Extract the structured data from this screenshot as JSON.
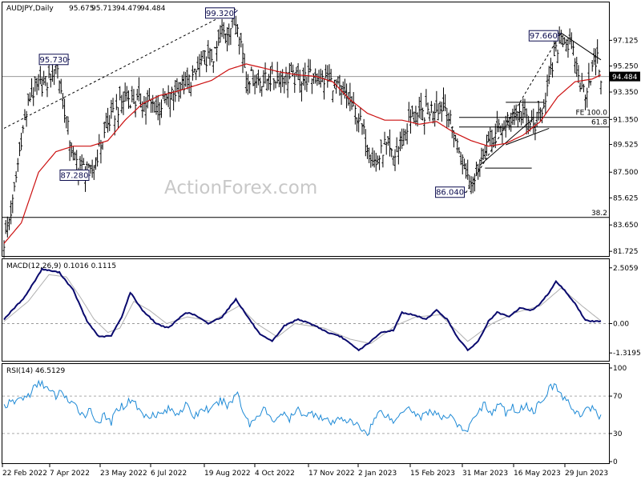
{
  "chart_data": [
    {
      "type": "candlestick",
      "title": "AUDJPY,Daily",
      "ohlc_header": [
        "95.675",
        "95.713",
        "94.479",
        "94.484"
      ],
      "y_ticks": [
        "97.125",
        "95.250",
        "93.350",
        "91.350",
        "89.525",
        "87.500",
        "85.625",
        "83.650",
        "81.725"
      ],
      "ylim": [
        81.5,
        99.6
      ],
      "last_price": "94.484",
      "x_ticks": [
        "22 Feb 2022",
        "7 Apr 2022",
        "23 May 2022",
        "6 Jul 2022",
        "19 Aug 2022",
        "4 Oct 2022",
        "17 Nov 2022",
        "2 Jan 2023",
        "15 Feb 2023",
        "31 Mar 2023",
        "16 May 2023",
        "29 Jun 2023"
      ],
      "closes_key_points": [
        [
          0,
          82.4
        ],
        [
          5,
          85.2
        ],
        [
          10,
          90.0
        ],
        [
          15,
          93.0
        ],
        [
          20,
          93.8
        ],
        [
          25,
          94.0
        ],
        [
          30,
          95.7
        ],
        [
          40,
          88.5
        ],
        [
          50,
          87.3
        ],
        [
          60,
          91.0
        ],
        [
          70,
          93.0
        ],
        [
          80,
          92.5
        ],
        [
          90,
          92.3
        ],
        [
          100,
          93.5
        ],
        [
          110,
          94.5
        ],
        [
          115,
          95.8
        ],
        [
          122,
          96.0
        ],
        [
          125,
          97.5
        ],
        [
          130,
          98.0
        ],
        [
          135,
          98.6
        ],
        [
          140,
          94.5
        ],
        [
          150,
          94.2
        ],
        [
          160,
          94.5
        ],
        [
          170,
          94.3
        ],
        [
          180,
          94.5
        ],
        [
          190,
          94.0
        ],
        [
          200,
          92.5
        ],
        [
          205,
          91.5
        ],
        [
          210,
          89.5
        ],
        [
          215,
          88.0
        ],
        [
          220,
          89.5
        ],
        [
          225,
          88.5
        ],
        [
          230,
          89.8
        ],
        [
          235,
          91.5
        ],
        [
          240,
          91.5
        ],
        [
          245,
          92.0
        ],
        [
          250,
          92.3
        ],
        [
          255,
          92.3
        ],
        [
          262,
          89.5
        ],
        [
          267,
          87.5
        ],
        [
          270,
          86.8
        ],
        [
          274,
          88.0
        ],
        [
          278,
          89.5
        ],
        [
          282,
          90.0
        ],
        [
          288,
          90.8
        ],
        [
          294,
          91.6
        ],
        [
          300,
          91.7
        ],
        [
          306,
          90.8
        ],
        [
          310,
          91.8
        ],
        [
          315,
          94.0
        ],
        [
          319,
          96.2
        ],
        [
          322,
          97.5
        ],
        [
          326,
          96.8
        ],
        [
          330,
          95.8
        ],
        [
          333,
          94.0
        ],
        [
          336,
          93.4
        ],
        [
          340,
          95.0
        ],
        [
          343,
          95.7
        ],
        [
          345,
          94.48
        ]
      ],
      "moving_average_key_points": [
        [
          0,
          82.3
        ],
        [
          10,
          83.8
        ],
        [
          20,
          87.5
        ],
        [
          30,
          89.0
        ],
        [
          40,
          89.4
        ],
        [
          50,
          89.4
        ],
        [
          60,
          89.8
        ],
        [
          70,
          91.3
        ],
        [
          80,
          92.5
        ],
        [
          90,
          93.1
        ],
        [
          100,
          93.4
        ],
        [
          110,
          93.8
        ],
        [
          120,
          94.2
        ],
        [
          130,
          95.0
        ],
        [
          140,
          95.4
        ],
        [
          150,
          95.1
        ],
        [
          160,
          94.8
        ],
        [
          170,
          94.6
        ],
        [
          180,
          94.5
        ],
        [
          190,
          94.1
        ],
        [
          200,
          92.8
        ],
        [
          210,
          91.8
        ],
        [
          220,
          91.3
        ],
        [
          230,
          91.3
        ],
        [
          240,
          91.0
        ],
        [
          250,
          91.2
        ],
        [
          260,
          90.4
        ],
        [
          270,
          89.8
        ],
        [
          280,
          89.4
        ],
        [
          290,
          89.6
        ],
        [
          300,
          90.2
        ],
        [
          310,
          91.2
        ],
        [
          320,
          93.0
        ],
        [
          330,
          94.1
        ],
        [
          340,
          94.3
        ],
        [
          345,
          94.6
        ]
      ],
      "levels": [
        {
          "label": "FE 100.0",
          "value": 91.5
        },
        {
          "label": "61.8",
          "value": 90.8
        },
        {
          "label": "38.2",
          "value": 84.2
        }
      ],
      "annotations": [
        {
          "text": "95.730",
          "bar": 38,
          "value": 95.73
        },
        {
          "text": "87.280",
          "bar": 50,
          "value": 87.28
        },
        {
          "text": "99.320",
          "bar": 135,
          "value": 99.32
        },
        {
          "text": "86.040",
          "bar": 267,
          "value": 86.04
        },
        {
          "text": "97.660",
          "bar": 322,
          "value": 97.66
        }
      ],
      "watermark": "ActionForex.com"
    },
    {
      "type": "line",
      "title": "MACD(12,26,9) 0.1016 0.1115",
      "y_ticks": [
        "2.5059",
        "0.00",
        "-1.3195"
      ],
      "ylim": [
        -1.6,
        2.75
      ],
      "series_key_points": [
        [
          0,
          0.2
        ],
        [
          12,
          1.2
        ],
        [
          22,
          2.45
        ],
        [
          32,
          2.3
        ],
        [
          40,
          1.5
        ],
        [
          48,
          0.1
        ],
        [
          55,
          -0.6
        ],
        [
          62,
          -0.55
        ],
        [
          68,
          0.3
        ],
        [
          73,
          1.4
        ],
        [
          80,
          0.6
        ],
        [
          88,
          0.0
        ],
        [
          95,
          -0.2
        ],
        [
          105,
          0.5
        ],
        [
          110,
          0.4
        ],
        [
          118,
          0.0
        ],
        [
          126,
          0.3
        ],
        [
          134,
          1.1
        ],
        [
          140,
          0.4
        ],
        [
          148,
          -0.5
        ],
        [
          155,
          -0.8
        ],
        [
          162,
          -0.1
        ],
        [
          170,
          0.2
        ],
        [
          180,
          -0.1
        ],
        [
          187,
          -0.4
        ],
        [
          195,
          -0.6
        ],
        [
          205,
          -1.2
        ],
        [
          212,
          -0.8
        ],
        [
          218,
          -0.4
        ],
        [
          225,
          -0.3
        ],
        [
          230,
          0.5
        ],
        [
          236,
          0.4
        ],
        [
          244,
          0.2
        ],
        [
          250,
          0.6
        ],
        [
          256,
          0.2
        ],
        [
          262,
          -0.6
        ],
        [
          268,
          -1.2
        ],
        [
          274,
          -0.8
        ],
        [
          280,
          0.1
        ],
        [
          285,
          0.5
        ],
        [
          292,
          0.3
        ],
        [
          298,
          0.7
        ],
        [
          305,
          0.6
        ],
        [
          310,
          0.9
        ],
        [
          315,
          1.4
        ],
        [
          319,
          1.9
        ],
        [
          324,
          1.5
        ],
        [
          330,
          0.9
        ],
        [
          336,
          0.15
        ],
        [
          340,
          0.1
        ],
        [
          345,
          0.1
        ]
      ],
      "signal_key_points": [
        [
          0,
          0.1
        ],
        [
          14,
          1.0
        ],
        [
          26,
          2.2
        ],
        [
          36,
          2.1
        ],
        [
          44,
          1.2
        ],
        [
          52,
          0.2
        ],
        [
          60,
          -0.4
        ],
        [
          67,
          -0.2
        ],
        [
          75,
          1.0
        ],
        [
          84,
          0.6
        ],
        [
          94,
          0.0
        ],
        [
          106,
          0.3
        ],
        [
          120,
          0.1
        ],
        [
          136,
          0.8
        ],
        [
          146,
          0.0
        ],
        [
          158,
          -0.6
        ],
        [
          168,
          0.0
        ],
        [
          185,
          -0.2
        ],
        [
          200,
          -0.7
        ],
        [
          212,
          -0.9
        ],
        [
          226,
          -0.1
        ],
        [
          238,
          0.3
        ],
        [
          252,
          0.4
        ],
        [
          268,
          -0.8
        ],
        [
          282,
          0.0
        ],
        [
          296,
          0.5
        ],
        [
          310,
          0.8
        ],
        [
          322,
          1.6
        ],
        [
          334,
          0.8
        ],
        [
          345,
          0.12
        ]
      ],
      "zero_label": "0.00"
    },
    {
      "type": "line",
      "title": "RSI(14) 46.5129",
      "y_ticks": [
        "100",
        "70",
        "30",
        "0"
      ],
      "ylim": [
        0,
        100
      ],
      "levels": [
        70,
        30
      ],
      "series_key_points": [
        [
          0,
          60
        ],
        [
          5,
          63
        ],
        [
          10,
          68
        ],
        [
          14,
          70
        ],
        [
          18,
          80
        ],
        [
          22,
          85
        ],
        [
          26,
          75
        ],
        [
          30,
          70
        ],
        [
          34,
          75
        ],
        [
          38,
          62
        ],
        [
          42,
          58
        ],
        [
          46,
          50
        ],
        [
          50,
          55
        ],
        [
          54,
          42
        ],
        [
          58,
          48
        ],
        [
          62,
          42
        ],
        [
          66,
          58
        ],
        [
          70,
          60
        ],
        [
          74,
          68
        ],
        [
          78,
          55
        ],
        [
          82,
          48
        ],
        [
          86,
          52
        ],
        [
          90,
          50
        ],
        [
          95,
          56
        ],
        [
          100,
          52
        ],
        [
          105,
          60
        ],
        [
          110,
          48
        ],
        [
          115,
          57
        ],
        [
          120,
          55
        ],
        [
          125,
          65
        ],
        [
          130,
          60
        ],
        [
          135,
          75
        ],
        [
          138,
          55
        ],
        [
          142,
          40
        ],
        [
          146,
          48
        ],
        [
          150,
          58
        ],
        [
          155,
          42
        ],
        [
          160,
          52
        ],
        [
          165,
          45
        ],
        [
          170,
          55
        ],
        [
          175,
          50
        ],
        [
          180,
          52
        ],
        [
          185,
          45
        ],
        [
          190,
          40
        ],
        [
          195,
          48
        ],
        [
          200,
          42
        ],
        [
          205,
          38
        ],
        [
          210,
          30
        ],
        [
          214,
          45
        ],
        [
          218,
          55
        ],
        [
          222,
          48
        ],
        [
          226,
          42
        ],
        [
          230,
          55
        ],
        [
          234,
          60
        ],
        [
          238,
          50
        ],
        [
          242,
          48
        ],
        [
          246,
          55
        ],
        [
          250,
          50
        ],
        [
          254,
          45
        ],
        [
          258,
          52
        ],
        [
          262,
          40
        ],
        [
          266,
          30
        ],
        [
          270,
          40
        ],
        [
          274,
          55
        ],
        [
          278,
          62
        ],
        [
          282,
          50
        ],
        [
          286,
          62
        ],
        [
          290,
          52
        ],
        [
          294,
          58
        ],
        [
          298,
          54
        ],
        [
          302,
          62
        ],
        [
          306,
          52
        ],
        [
          310,
          65
        ],
        [
          314,
          75
        ],
        [
          318,
          82
        ],
        [
          322,
          72
        ],
        [
          326,
          62
        ],
        [
          330,
          55
        ],
        [
          334,
          48
        ],
        [
          338,
          58
        ],
        [
          342,
          55
        ],
        [
          345,
          46.5
        ]
      ]
    }
  ]
}
